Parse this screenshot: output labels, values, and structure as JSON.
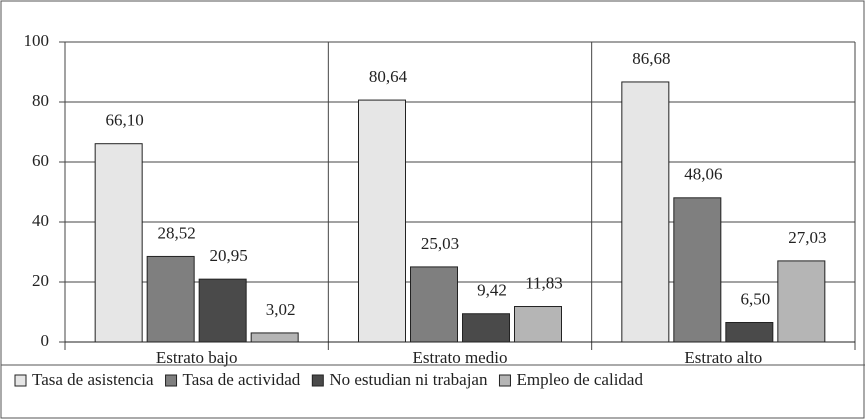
{
  "chart_data": {
    "type": "bar",
    "categories": [
      "Estrato bajo",
      "Estrato medio",
      "Estrato alto"
    ],
    "series": [
      {
        "name": "Tasa de asistencia",
        "color": "#e6e6e6",
        "values": [
          66.1,
          80.64,
          86.68
        ],
        "value_labels": [
          "66,10",
          "80,64",
          "86,68"
        ]
      },
      {
        "name": "Tasa de actividad",
        "color": "#7f7f7f",
        "values": [
          28.52,
          25.03,
          48.06
        ],
        "value_labels": [
          "28,52",
          "25,03",
          "48,06"
        ]
      },
      {
        "name": "No estudian ni trabajan",
        "color": "#4a4a4a",
        "values": [
          20.95,
          9.42,
          6.5
        ],
        "value_labels": [
          "20,95",
          "9,42",
          "6,50"
        ]
      },
      {
        "name": "Empleo de calidad",
        "color": "#b5b5b5",
        "values": [
          3.02,
          11.83,
          27.03
        ],
        "value_labels": [
          "3,02",
          "11,83",
          "27,03"
        ]
      }
    ],
    "ylim": [
      0,
      100
    ],
    "yticks": [
      0,
      20,
      40,
      60,
      80,
      100
    ],
    "grid": true,
    "legend": "bottom"
  }
}
